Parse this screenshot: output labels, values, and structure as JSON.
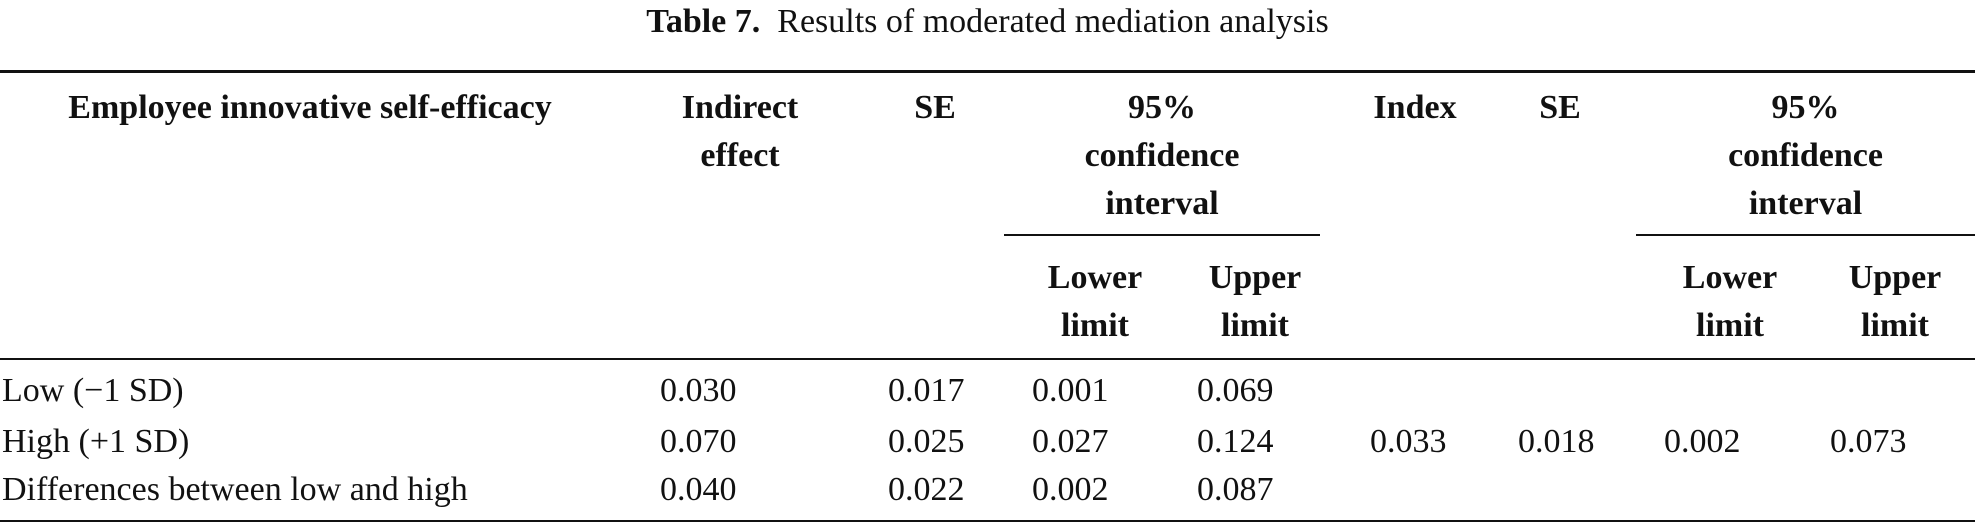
{
  "caption": {
    "label": "Table 7.",
    "title": "Results of moderated mediation analysis"
  },
  "headers": {
    "col0": "Employee innovative self-efficacy",
    "indirect_1": "Indirect",
    "indirect_2": "effect",
    "se1": "SE",
    "ci1_1": "95%",
    "ci1_2": "confidence",
    "ci1_3": "interval",
    "ci1_lower_1": "Lower",
    "ci1_lower_2": "limit",
    "ci1_upper_1": "Upper",
    "ci1_upper_2": "limit",
    "index": "Index",
    "se2": "SE",
    "ci2_1": "95%",
    "ci2_2": "confidence",
    "ci2_3": "interval",
    "ci2_lower_1": "Lower",
    "ci2_lower_2": "limit",
    "ci2_upper_1": "Upper",
    "ci2_upper_2": "limit"
  },
  "rows": [
    {
      "label": "Low (−1 SD)",
      "indirect": "0.030",
      "se": "0.017",
      "lower": "0.001",
      "upper": "0.069"
    },
    {
      "label": "High (+1 SD)",
      "indirect": "0.070",
      "se": "0.025",
      "lower": "0.027",
      "upper": "0.124"
    },
    {
      "label": "Differences between low and high",
      "indirect": "0.040",
      "se": "0.022",
      "lower": "0.002",
      "upper": "0.087"
    }
  ],
  "moderated": {
    "index": "0.033",
    "se": "0.018",
    "lower": "0.002",
    "upper": "0.073"
  }
}
